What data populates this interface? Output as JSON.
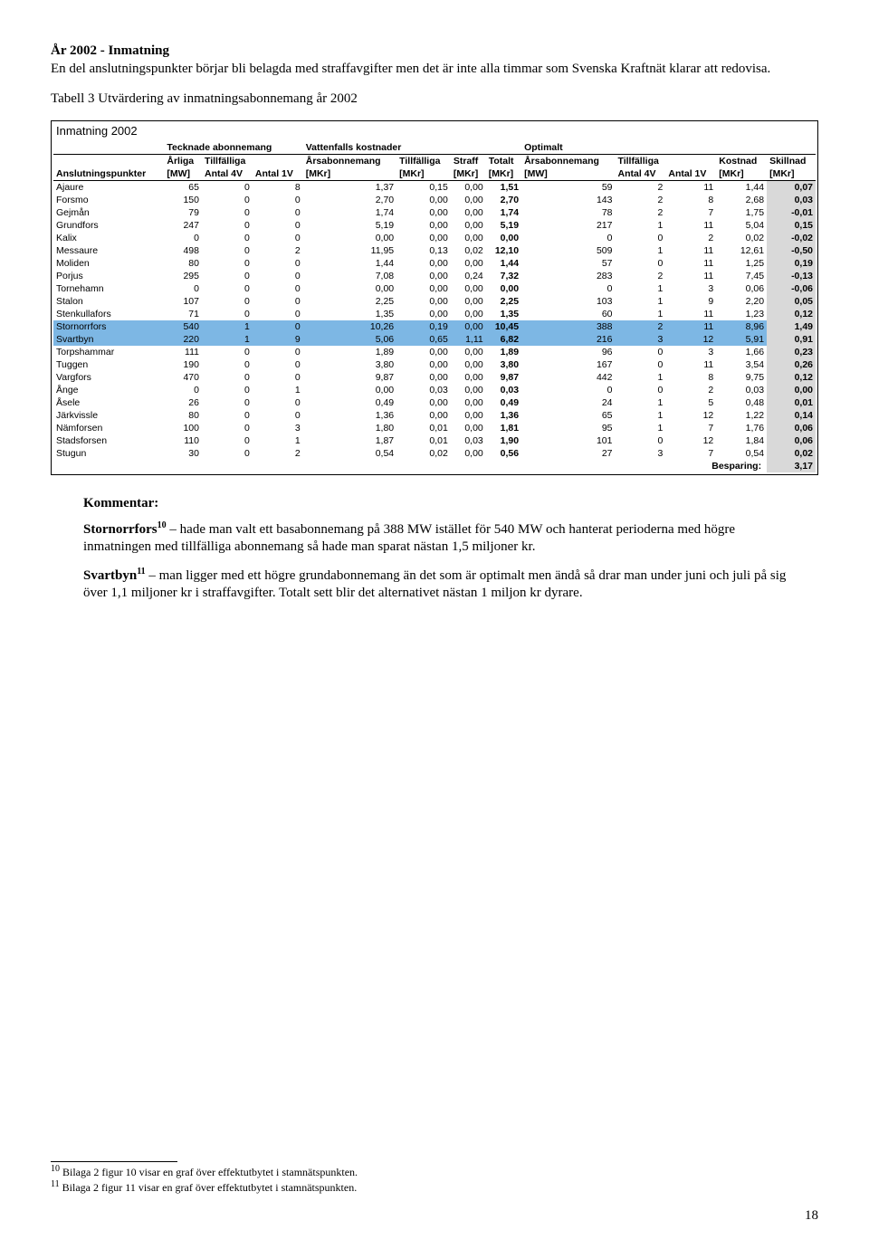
{
  "heading": "År 2002 - Inmatning",
  "intro": "En del anslutningspunkter börjar bli belagda med straffavgifter men det är inte alla timmar som Svenska Kraftnät klarar att redovisa.",
  "tableCaption": "Tabell 3 Utvärdering av inmatningsabonnemang år 2002",
  "table": {
    "title": "Inmatning 2002",
    "groups": [
      "",
      "Tecknade abonnemang",
      "",
      "Vattenfalls kostnader",
      "",
      "",
      "",
      "Optimalt",
      "",
      "",
      ""
    ],
    "headers": [
      "",
      "Årliga",
      "Tillfälliga",
      "Årsabonnemang",
      "Tillfälliga",
      "Straff",
      "Totalt",
      "Årsabonnemang",
      "Tillfälliga",
      "Kostnad",
      "Skillnad"
    ],
    "units": [
      "Anslutningspunkter",
      "[MW]",
      "Antal 4V",
      "Antal 1V",
      "[MKr]",
      "[MKr]",
      "[MKr]",
      "[MKr]",
      "[MW]",
      "Antal 4V",
      "Antal 1V",
      "[MKr]",
      "[MKr]"
    ],
    "highlightRows": [
      11,
      12
    ],
    "rows": [
      [
        "Ajaure",
        "65",
        "0",
        "8",
        "1,37",
        "0,15",
        "0,00",
        "1,51",
        "59",
        "2",
        "11",
        "1,44",
        "0,07"
      ],
      [
        "Forsmo",
        "150",
        "0",
        "0",
        "2,70",
        "0,00",
        "0,00",
        "2,70",
        "143",
        "2",
        "8",
        "2,68",
        "0,03"
      ],
      [
        "Gejmån",
        "79",
        "0",
        "0",
        "1,74",
        "0,00",
        "0,00",
        "1,74",
        "78",
        "2",
        "7",
        "1,75",
        "-0,01"
      ],
      [
        "Grundfors",
        "247",
        "0",
        "0",
        "5,19",
        "0,00",
        "0,00",
        "5,19",
        "217",
        "1",
        "11",
        "5,04",
        "0,15"
      ],
      [
        "Kalix",
        "0",
        "0",
        "0",
        "0,00",
        "0,00",
        "0,00",
        "0,00",
        "0",
        "0",
        "2",
        "0,02",
        "-0,02"
      ],
      [
        "Messaure",
        "498",
        "0",
        "2",
        "11,95",
        "0,13",
        "0,02",
        "12,10",
        "509",
        "1",
        "11",
        "12,61",
        "-0,50"
      ],
      [
        "Moliden",
        "80",
        "0",
        "0",
        "1,44",
        "0,00",
        "0,00",
        "1,44",
        "57",
        "0",
        "11",
        "1,25",
        "0,19"
      ],
      [
        "Porjus",
        "295",
        "0",
        "0",
        "7,08",
        "0,00",
        "0,24",
        "7,32",
        "283",
        "2",
        "11",
        "7,45",
        "-0,13"
      ],
      [
        "Tornehamn",
        "0",
        "0",
        "0",
        "0,00",
        "0,00",
        "0,00",
        "0,00",
        "0",
        "1",
        "3",
        "0,06",
        "-0,06"
      ],
      [
        "Stalon",
        "107",
        "0",
        "0",
        "2,25",
        "0,00",
        "0,00",
        "2,25",
        "103",
        "1",
        "9",
        "2,20",
        "0,05"
      ],
      [
        "Stenkullafors",
        "71",
        "0",
        "0",
        "1,35",
        "0,00",
        "0,00",
        "1,35",
        "60",
        "1",
        "11",
        "1,23",
        "0,12"
      ],
      [
        "Stornorrfors",
        "540",
        "1",
        "0",
        "10,26",
        "0,19",
        "0,00",
        "10,45",
        "388",
        "2",
        "11",
        "8,96",
        "1,49"
      ],
      [
        "Svartbyn",
        "220",
        "1",
        "9",
        "5,06",
        "0,65",
        "1,11",
        "6,82",
        "216",
        "3",
        "12",
        "5,91",
        "0,91"
      ],
      [
        "Torpshammar",
        "111",
        "0",
        "0",
        "1,89",
        "0,00",
        "0,00",
        "1,89",
        "96",
        "0",
        "3",
        "1,66",
        "0,23"
      ],
      [
        "Tuggen",
        "190",
        "0",
        "0",
        "3,80",
        "0,00",
        "0,00",
        "3,80",
        "167",
        "0",
        "11",
        "3,54",
        "0,26"
      ],
      [
        "Vargfors",
        "470",
        "0",
        "0",
        "9,87",
        "0,00",
        "0,00",
        "9,87",
        "442",
        "1",
        "8",
        "9,75",
        "0,12"
      ],
      [
        "Ånge",
        "0",
        "0",
        "1",
        "0,00",
        "0,03",
        "0,00",
        "0,03",
        "0",
        "0",
        "2",
        "0,03",
        "0,00"
      ],
      [
        "Åsele",
        "26",
        "0",
        "0",
        "0,49",
        "0,00",
        "0,00",
        "0,49",
        "24",
        "1",
        "5",
        "0,48",
        "0,01"
      ],
      [
        "Järkvissle",
        "80",
        "0",
        "0",
        "1,36",
        "0,00",
        "0,00",
        "1,36",
        "65",
        "1",
        "12",
        "1,22",
        "0,14"
      ],
      [
        "Nämforsen",
        "100",
        "0",
        "3",
        "1,80",
        "0,01",
        "0,00",
        "1,81",
        "95",
        "1",
        "7",
        "1,76",
        "0,06"
      ],
      [
        "Stadsforsen",
        "110",
        "0",
        "1",
        "1,87",
        "0,01",
        "0,03",
        "1,90",
        "101",
        "0",
        "12",
        "1,84",
        "0,06"
      ],
      [
        "Stugun",
        "30",
        "0",
        "2",
        "0,54",
        "0,02",
        "0,00",
        "0,56",
        "27",
        "3",
        "7",
        "0,54",
        "0,02"
      ]
    ],
    "footerLabel": "Besparing:",
    "footerValue": "3,17"
  },
  "kommentar": {
    "title": "Kommentar:",
    "p1a": "Stornorrfors",
    "p1sup": "10",
    "p1b": " – hade man valt ett basabonnemang på 388 MW istället för 540 MW och hanterat perioderna med högre inmatningen med tillfälliga abonnemang så hade man sparat nästan 1,5 miljoner kr.",
    "p2a": "Svartbyn",
    "p2sup": "11",
    "p2b": " – man ligger med ett högre grundabonnemang än det som är optimalt men ändå så drar man under juni och juli på sig över 1,1 miljoner kr i straffavgifter. Totalt sett blir det alternativet nästan 1 miljon kr dyrare."
  },
  "footnotes": {
    "f1": "10 Bilaga 2 figur 10 visar en graf över effektutbytet i stamnätspunkten.",
    "f2": "11 Bilaga 2 figur 11 visar en graf över effektutbytet i stamnätspunkten."
  },
  "pageNum": "18"
}
